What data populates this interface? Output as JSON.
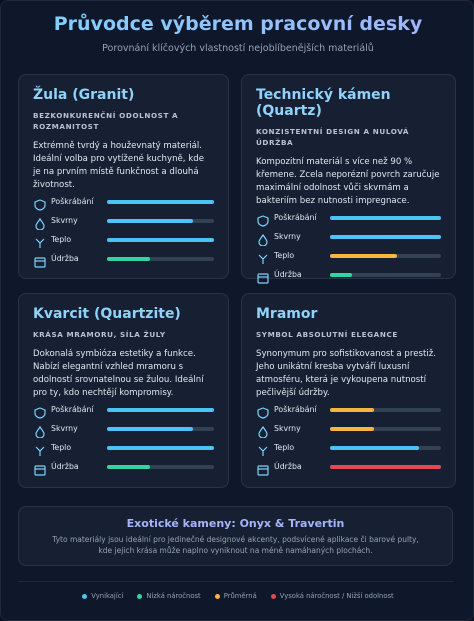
{
  "header": {
    "title": "Průvodce výběrem pracovní desky",
    "subtitle": "Porovnání klíčových vlastností nejoblíbenějších materiálů"
  },
  "cards": [
    {
      "title": "Žula (Granit)",
      "tagline": "BEZKONKURENČNÍ ODOLNOST A ROZMANITOST",
      "description": "Extrémně tvrdý a houževnatý materiál. Ideální volba pro vytížené kuchyně, kde je na prvním místě funkčnost a dlouhá životnost.",
      "metrics": [
        {
          "label": "Poškrábání",
          "value": 100,
          "color": "#4cc3f5"
        },
        {
          "label": "Skvrny",
          "value": 80,
          "color": "#4cc3f5"
        },
        {
          "label": "Teplo",
          "value": 100,
          "color": "#4cc3f5"
        },
        {
          "label": "Údržba",
          "value": 40,
          "color": "#34d3a0"
        }
      ]
    },
    {
      "title": "Technický kámen (Quartz)",
      "tagline": "KONZISTENTNÍ DESIGN A NULOVÁ ÚDRŽBA",
      "description": "Kompozitní materiál s více než 90 % křemene. Zcela neporézní povrch zaručuje maximální odolnost vůči skvrnám a bakteriím bez nutnosti impregnace.",
      "metrics": [
        {
          "label": "Poškrábání",
          "value": 100,
          "color": "#4cc3f5"
        },
        {
          "label": "Skvrny",
          "value": 100,
          "color": "#4cc3f5"
        },
        {
          "label": "Teplo",
          "value": 60,
          "color": "#f5b53f"
        },
        {
          "label": "Údržba",
          "value": 20,
          "color": "#34d3a0"
        }
      ]
    },
    {
      "title": "Kvarcit (Quartzite)",
      "tagline": "KRÁSA MRAMORU, SÍLA ŽULY",
      "description": "Dokonalá symbióza estetiky a funkce. Nabízí elegantní vzhled mramoru s odolností srovnatelnou se žulou. Ideální pro ty, kdo nechtějí kompromisy.",
      "metrics": [
        {
          "label": "Poškrábání",
          "value": 100,
          "color": "#4cc3f5"
        },
        {
          "label": "Skvrny",
          "value": 80,
          "color": "#4cc3f5"
        },
        {
          "label": "Teplo",
          "value": 100,
          "color": "#4cc3f5"
        },
        {
          "label": "Údržba",
          "value": 40,
          "color": "#34d3a0"
        }
      ]
    },
    {
      "title": "Mramor",
      "tagline": "SYMBOL ABSOLUTNÍ ELEGANCE",
      "description": "Synonymum pro sofistikovanost a prestiž. Jeho unikátní kresba vytváří luxusní atmosféru, která je vykoupena nutností pečlivější údržby.",
      "metrics": [
        {
          "label": "Poškrábání",
          "value": 40,
          "color": "#f5b53f"
        },
        {
          "label": "Skvrny",
          "value": 40,
          "color": "#f5b53f"
        },
        {
          "label": "Teplo",
          "value": 80,
          "color": "#4cc3f5"
        },
        {
          "label": "Údržba",
          "value": 100,
          "color": "#e5484d"
        }
      ]
    }
  ],
  "footer_card": {
    "title": "Exotické kameny: Onyx & Travertin",
    "text": "Tyto materiály jsou ideální pro jedinečné designové akcenty, podsvícené aplikace či barové pulty, kde jejich krása může naplno vyniknout na méně namáhaných plochách."
  },
  "legend": [
    {
      "label": "Vynikající",
      "color": "#4cc3f5"
    },
    {
      "label": "Nízká náročnost",
      "color": "#34d3a0"
    },
    {
      "label": "Průměrná",
      "color": "#f5b53f"
    },
    {
      "label": "Vysoká náročnost / Nižší odolnost",
      "color": "#e5484d"
    }
  ]
}
